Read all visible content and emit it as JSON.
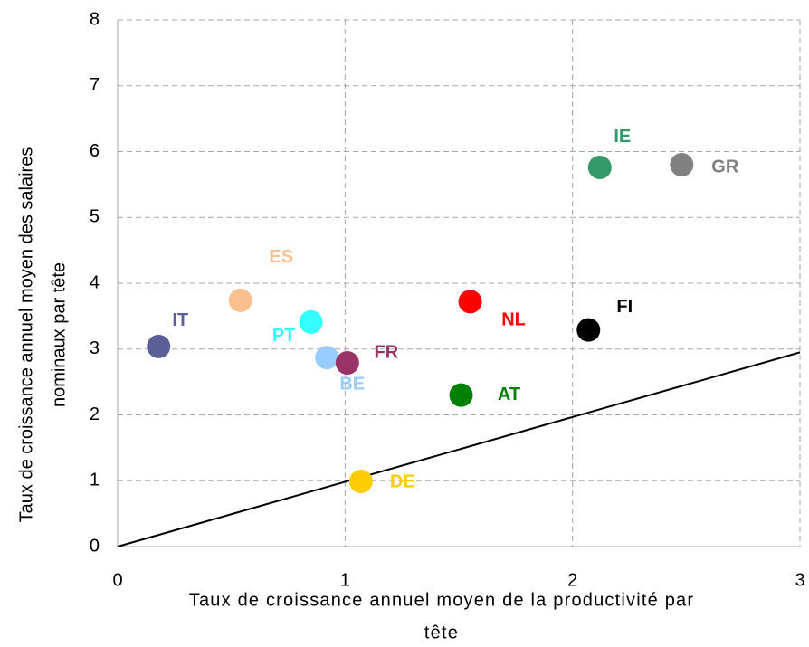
{
  "chart_data": {
    "type": "scatter",
    "xlabel": [
      "Taux de croissance annuel moyen de la productivité par",
      "tête"
    ],
    "ylabel": [
      "Taux de croissance annuel moyen des salaires",
      "nominaux par tête"
    ],
    "xlim": [
      0,
      3
    ],
    "ylim": [
      0,
      8
    ],
    "xticks": [
      0,
      1,
      2,
      3
    ],
    "yticks": [
      0,
      1,
      2,
      3,
      4,
      5,
      6,
      7,
      8
    ],
    "grid": true,
    "reference_line": {
      "x": [
        0,
        3
      ],
      "y": [
        0,
        2.95
      ],
      "color": "#000000"
    },
    "points": [
      {
        "name": "IT",
        "color": "#5b5f97",
        "x": 0.18,
        "y": 3.04
      },
      {
        "name": "ES",
        "color": "#fac090",
        "x": 0.54,
        "y": 3.74
      },
      {
        "name": "PT",
        "color": "#33ffff",
        "x": 0.85,
        "y": 3.41
      },
      {
        "name": "BE",
        "color": "#99ccff",
        "x": 0.92,
        "y": 2.87
      },
      {
        "name": "FR",
        "color": "#993366",
        "x": 1.01,
        "y": 2.79
      },
      {
        "name": "DE",
        "color": "#ffcc00",
        "x": 1.07,
        "y": 0.99
      },
      {
        "name": "AT",
        "color": "#008000",
        "x": 1.51,
        "y": 2.3
      },
      {
        "name": "NL",
        "color": "#ff0000",
        "x": 1.55,
        "y": 3.72
      },
      {
        "name": "FI",
        "color": "#000000",
        "x": 2.07,
        "y": 3.29
      },
      {
        "name": "IE",
        "color": "#339966",
        "x": 2.12,
        "y": 5.76
      },
      {
        "name": "GR",
        "color": "#808080",
        "x": 2.48,
        "y": 5.8
      }
    ]
  }
}
